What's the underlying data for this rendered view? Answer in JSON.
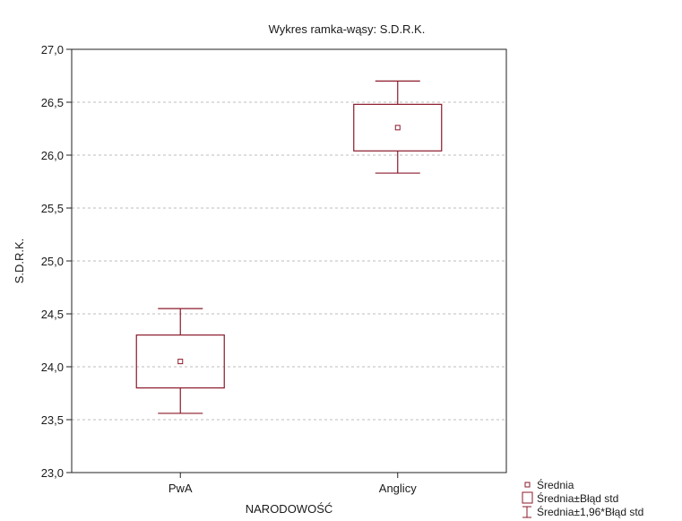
{
  "chart_data": {
    "type": "box",
    "title": "Wykres ramka-wąsy:  S.D.R.K.",
    "xlabel": "NARODOWOŚĆ",
    "ylabel": "S.D.R.K.",
    "ylim": [
      23.0,
      27.0
    ],
    "yticks": [
      "23,0",
      "23,5",
      "24,0",
      "24,5",
      "25,0",
      "25,5",
      "26,0",
      "26,5",
      "27,0"
    ],
    "grid": "horizontal-dashed",
    "legend_placement": "bottom-right",
    "box_color": "#8b1a2b",
    "categories": [
      "PwA",
      "Anglicy"
    ],
    "groups": [
      {
        "category": "PwA",
        "mean": 24.05,
        "se_low": 23.8,
        "se_high": 24.3,
        "ci_low": 23.56,
        "ci_high": 24.55
      },
      {
        "category": "Anglicy",
        "mean": 26.26,
        "se_low": 26.04,
        "se_high": 26.48,
        "ci_low": 25.83,
        "ci_high": 26.7
      }
    ],
    "legend": [
      {
        "label": "Średnia",
        "symbol": "small-square"
      },
      {
        "label": "Średnia±Błąd std",
        "symbol": "box"
      },
      {
        "label": "Średnia±1,96*Błąd std",
        "symbol": "whisker"
      }
    ]
  }
}
